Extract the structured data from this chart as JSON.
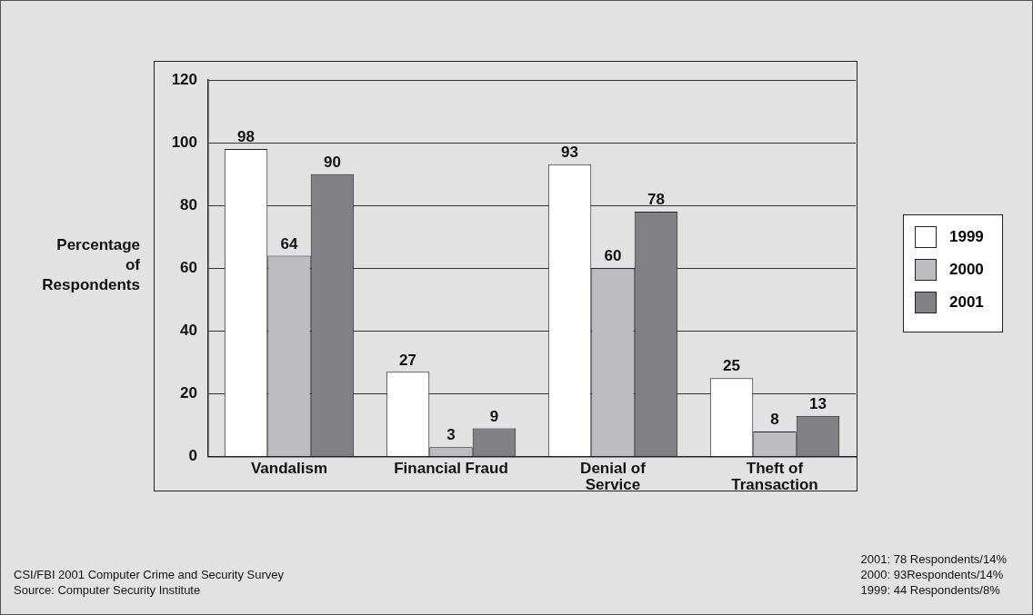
{
  "chart_data": {
    "type": "bar",
    "ylabel": "Percentage of Respondents",
    "categories": [
      "Vandalism",
      "Financial Fraud",
      "Denial of Service",
      "Theft of Transaction"
    ],
    "series": [
      {
        "name": "1999",
        "color": "#ffffff",
        "values": [
          98,
          27,
          93,
          25
        ]
      },
      {
        "name": "2000",
        "color": "#bdbdc1",
        "values": [
          64,
          3,
          60,
          8
        ]
      },
      {
        "name": "2001",
        "color": "#808085",
        "values": [
          90,
          9,
          78,
          13
        ]
      }
    ],
    "ylim": [
      0,
      120
    ],
    "yticks": [
      0,
      20,
      40,
      60,
      80,
      100,
      120
    ],
    "grid": "y",
    "legend": "right",
    "data_labels": true,
    "annotations": [
      "CSI/FBI 2001 Computer Crime and Security Survey",
      "Source: Computer Security Institute",
      "2001: 78 Respondents/14%",
      "2000: 93Respondents/14%",
      "1999: 44 Respondents/8%"
    ]
  }
}
